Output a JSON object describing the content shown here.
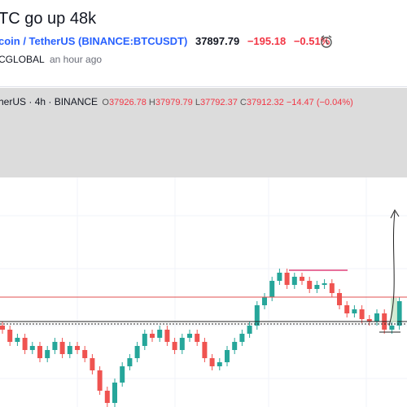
{
  "header": {
    "title": "TC go up 48k",
    "symbol_name": "coin / TetherUS",
    "symbol_code": "(BINANCE:BTCUSDT)",
    "price": "37897.79",
    "change": "−195.18",
    "change_pct": "−0.51%",
    "author": "CGLOBAL",
    "time": "an hour ago"
  },
  "legend": {
    "pair": "herUS",
    "interval": "4h",
    "exchange": "BINANCE",
    "open_label": "O",
    "open": "37926.78",
    "high_label": "H",
    "high": "37979.79",
    "low_label": "L",
    "low": "37792.37",
    "close_label": "C",
    "close": "37912.32",
    "change": "−14.47 (−0.04%)"
  }
}
